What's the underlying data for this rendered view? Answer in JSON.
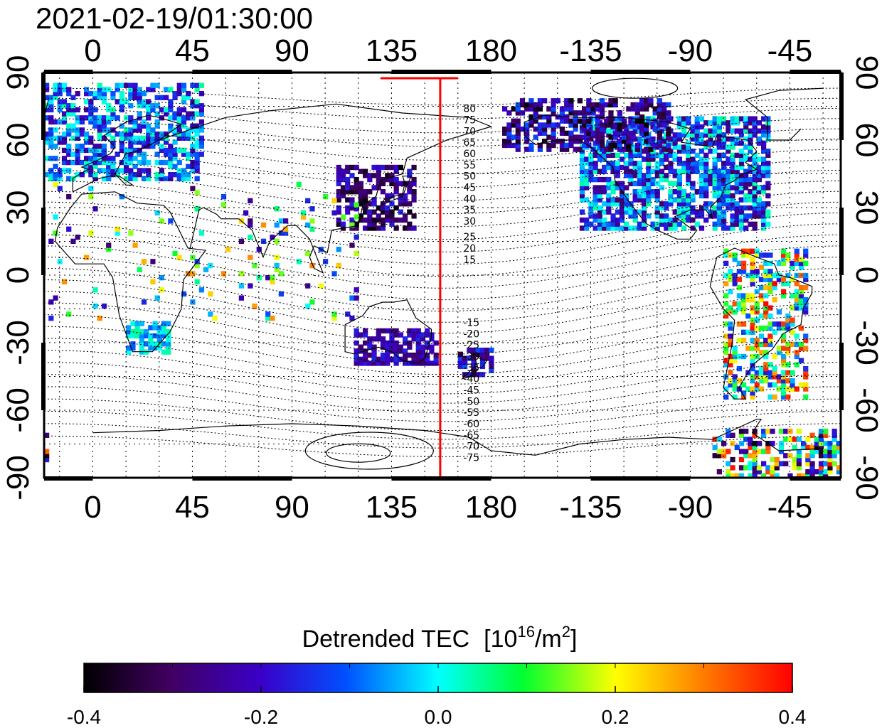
{
  "title": "2021-02-19/01:30:00",
  "longitude_ticks": [
    "0",
    "45",
    "90",
    "135",
    "180",
    "-135",
    "-90",
    "-45"
  ],
  "latitude_ticks": [
    "90",
    "60",
    "30",
    "0",
    "-30",
    "-60",
    "-90"
  ],
  "magnetic_latitude_labels_north": [
    "80",
    "75",
    "70",
    "65",
    "60",
    "55",
    "50",
    "45",
    "40",
    "35",
    "30",
    "25",
    "20",
    "15"
  ],
  "magnetic_latitude_labels_south": [
    "-15",
    "-20",
    "-25",
    "-30",
    "-35",
    "-40",
    "-45",
    "-50",
    "-55",
    "-60",
    "-65",
    "-70",
    "-75"
  ],
  "colorbar": {
    "title": "Detrended TEC",
    "unit_base": "10",
    "unit_exp": "16",
    "unit_mid": "/m",
    "unit_exp2": "2",
    "ticks": [
      "-0.4",
      "-0.2",
      "0.0",
      "0.2",
      "0.4"
    ],
    "min": -0.4,
    "max": 0.4
  },
  "terminator_longitude": 157,
  "colors": {
    "terminator": "#ff0000",
    "coast": "#000000",
    "frame": "#000000"
  },
  "data_regions": [
    {
      "name": "europe",
      "lon": [
        -22,
        50
      ],
      "lat": [
        42,
        85
      ],
      "density": 0.55,
      "value": [
        -0.25,
        0.05
      ]
    },
    {
      "name": "north-america",
      "lon": [
        -140,
        -55
      ],
      "lat": [
        20,
        70
      ],
      "density": 0.7,
      "value": [
        -0.3,
        0.05
      ]
    },
    {
      "name": "alaska-arctic",
      "lon": [
        -175,
        -100
      ],
      "lat": [
        55,
        78
      ],
      "density": 0.55,
      "value": [
        -0.4,
        -0.1
      ]
    },
    {
      "name": "east-asia",
      "lon": [
        110,
        145
      ],
      "lat": [
        20,
        48
      ],
      "density": 0.55,
      "value": [
        -0.4,
        -0.15
      ]
    },
    {
      "name": "australia",
      "lon": [
        118,
        155
      ],
      "lat": [
        -40,
        -25
      ],
      "density": 0.7,
      "value": [
        -0.3,
        -0.15
      ]
    },
    {
      "name": "new-zealand",
      "lon": [
        165,
        180
      ],
      "lat": [
        -45,
        -33
      ],
      "density": 0.6,
      "value": [
        -0.35,
        -0.1
      ]
    },
    {
      "name": "south-america",
      "lon": [
        -75,
        -38
      ],
      "lat": [
        -55,
        10
      ],
      "density": 0.45,
      "value": [
        -0.2,
        0.4
      ]
    },
    {
      "name": "southern-africa",
      "lon": [
        15,
        35
      ],
      "lat": [
        -35,
        -22
      ],
      "density": 0.6,
      "value": [
        -0.1,
        0.05
      ]
    },
    {
      "name": "antarctica",
      "lon": [
        -80,
        -20
      ],
      "lat": [
        -90,
        -70
      ],
      "density": 0.45,
      "value": [
        -0.4,
        0.4
      ]
    },
    {
      "name": "scattered-africa-asia",
      "lon": [
        -20,
        120
      ],
      "lat": [
        -20,
        40
      ],
      "density": 0.05,
      "value": [
        -0.3,
        0.3
      ]
    }
  ]
}
